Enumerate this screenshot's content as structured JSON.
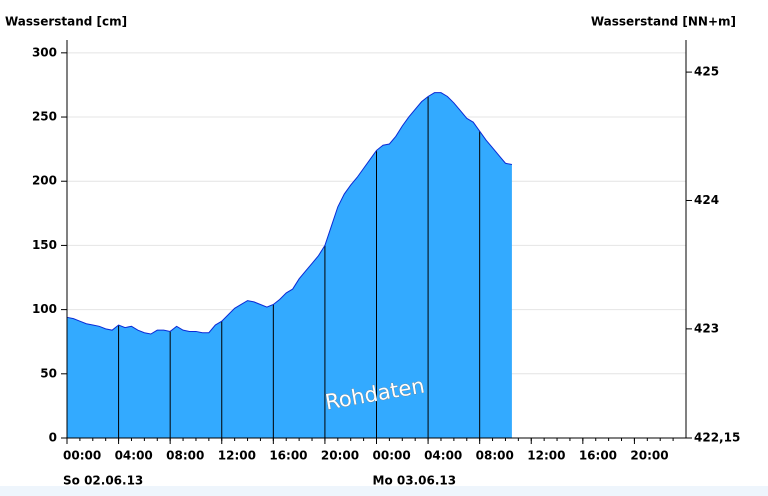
{
  "chart_data": {
    "type": "area",
    "y_label": "Wasserstand [cm]",
    "y2_label": "Wasserstand [NN+m]",
    "annotation": "Rohdaten",
    "x": [
      0,
      0.5,
      1,
      1.5,
      2,
      2.5,
      3,
      3.5,
      4,
      4.5,
      5,
      5.5,
      6,
      6.5,
      7,
      7.5,
      8,
      8.5,
      9,
      9.5,
      10,
      10.5,
      11,
      11.5,
      12,
      12.5,
      13,
      13.5,
      14,
      14.5,
      15,
      15.5,
      16,
      16.5,
      17,
      17.5,
      18,
      18.5,
      19,
      19.5,
      20,
      20.5,
      21,
      21.5,
      22,
      22.5,
      23,
      23.5,
      24,
      24.5,
      25,
      25.5,
      26,
      26.5,
      27,
      27.5,
      28,
      28.5,
      29,
      29.5,
      30,
      30.5,
      31,
      31.5,
      32,
      32.5,
      33,
      33.5,
      34,
      34.5
    ],
    "series": [
      {
        "name": "Wasserstand",
        "color": "#33aaff",
        "line_color": "#0a2ad6",
        "values": [
          94,
          93,
          91,
          89,
          88,
          87,
          85,
          84,
          88,
          86,
          87,
          84,
          82,
          81,
          84,
          84,
          83,
          87,
          84,
          83,
          83,
          82,
          82,
          88,
          91,
          96,
          101,
          104,
          107,
          106,
          104,
          102,
          104,
          108,
          113,
          116,
          124,
          130,
          136,
          142,
          150,
          165,
          180,
          190,
          197,
          203,
          210,
          217,
          224,
          228,
          229,
          235,
          243,
          250,
          256,
          262,
          266,
          269,
          269,
          266,
          261,
          255,
          249,
          246,
          239,
          232,
          226,
          220,
          214,
          213
        ]
      }
    ],
    "xlim": [
      0,
      48
    ],
    "xticks": [
      {
        "value": 0,
        "label": "00:00"
      },
      {
        "value": 4,
        "label": "04:00"
      },
      {
        "value": 8,
        "label": "08:00"
      },
      {
        "value": 12,
        "label": "12:00"
      },
      {
        "value": 16,
        "label": "16:00"
      },
      {
        "value": 20,
        "label": "20:00"
      },
      {
        "value": 24,
        "label": "00:00"
      },
      {
        "value": 28,
        "label": "04:00"
      },
      {
        "value": 32,
        "label": "08:00"
      },
      {
        "value": 36,
        "label": "12:00"
      },
      {
        "value": 40,
        "label": "16:00"
      },
      {
        "value": 44,
        "label": "20:00"
      }
    ],
    "x_date_labels": [
      {
        "value": 0,
        "label": "So 02.06.13"
      },
      {
        "value": 24,
        "label": "Mo 03.06.13"
      }
    ],
    "ylim": [
      0,
      310
    ],
    "yticks": [
      0,
      50,
      100,
      150,
      200,
      250,
      300
    ],
    "y2lim": [
      422.15,
      425.25
    ],
    "y2ticks": [
      {
        "value": 422.15,
        "label": "422,15"
      },
      423,
      424,
      425
    ],
    "grid": true
  }
}
